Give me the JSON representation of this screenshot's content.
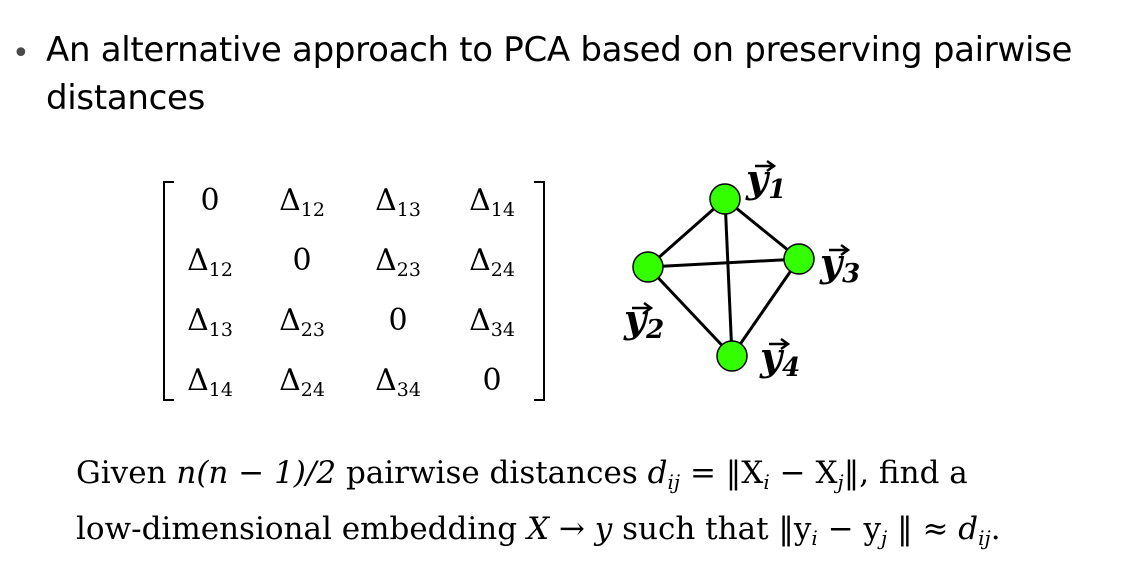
{
  "bullet": {
    "text": "An alternative approach to PCA based on preserving pairwise distances"
  },
  "matrix": {
    "rows": [
      [
        {
          "base": "0",
          "sub": ""
        },
        {
          "base": "Δ",
          "sub": "12"
        },
        {
          "base": "Δ",
          "sub": "13"
        },
        {
          "base": "Δ",
          "sub": "14"
        }
      ],
      [
        {
          "base": "Δ",
          "sub": "12"
        },
        {
          "base": "0",
          "sub": ""
        },
        {
          "base": "Δ",
          "sub": "23"
        },
        {
          "base": "Δ",
          "sub": "24"
        }
      ],
      [
        {
          "base": "Δ",
          "sub": "13"
        },
        {
          "base": "Δ",
          "sub": "23"
        },
        {
          "base": "0",
          "sub": ""
        },
        {
          "base": "Δ",
          "sub": "34"
        }
      ],
      [
        {
          "base": "Δ",
          "sub": "14"
        },
        {
          "base": "Δ",
          "sub": "24"
        },
        {
          "base": "Δ",
          "sub": "34"
        },
        {
          "base": "0",
          "sub": ""
        }
      ]
    ]
  },
  "graph": {
    "node_color": "#33ff00",
    "nodes": [
      {
        "id": "y1",
        "label": "y",
        "sub": "1"
      },
      {
        "id": "y2",
        "label": "y",
        "sub": "2"
      },
      {
        "id": "y3",
        "label": "y",
        "sub": "3"
      },
      {
        "id": "y4",
        "label": "y",
        "sub": "4"
      }
    ],
    "edges": [
      [
        "y1",
        "y2"
      ],
      [
        "y1",
        "y3"
      ],
      [
        "y1",
        "y4"
      ],
      [
        "y2",
        "y3"
      ],
      [
        "y2",
        "y4"
      ],
      [
        "y3",
        "y4"
      ]
    ]
  },
  "math": {
    "line1": {
      "given": "Given",
      "n_expr": "n(n − 1)/2",
      "pairwise": "pairwise distances",
      "d": "d",
      "ij": "ij",
      "eq_norm": "= ‖X",
      "i": "i",
      "minus_x": "− X",
      "j": "j",
      "close": "‖, find a"
    },
    "line2": {
      "prefix": "low-dimensional embedding",
      "X": "X",
      "arrow": "→",
      "y": "y",
      "such": "such that ‖y",
      "i": "i",
      "minus_y": "− y",
      "j": "j",
      "approx": "‖ ≈",
      "d": "d",
      "ij": "ij",
      "end": "."
    }
  }
}
